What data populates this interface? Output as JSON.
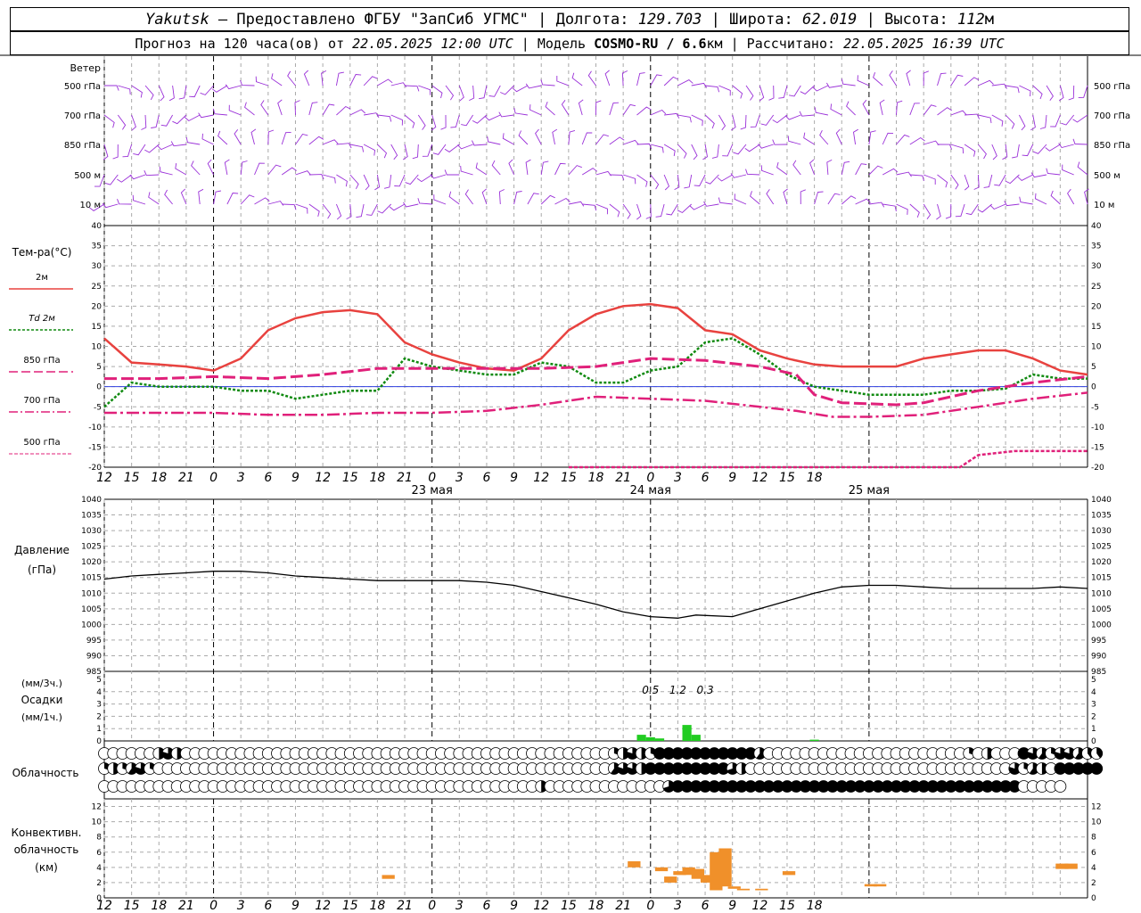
{
  "header": {
    "line1": {
      "station": "Yakutsk",
      "provided": " — Предоставлено ФГБУ \"ЗапСиб УГМС\" | Долгота: ",
      "lon": "129.703",
      "lat_label": " | Широта: ",
      "lat": "62.019",
      "alt_label": " | Высота: ",
      "alt": "112",
      "alt_unit": "м"
    },
    "line2": {
      "forecast": "Прогноз на 120 часа(ов) от ",
      "init": "22.05.2025 12:00 UTC",
      "model_label": "  | Модель ",
      "model": "COSMO-RU / 6.6",
      "model_unit": "км",
      "calc_label": " | Рассчитано: ",
      "calc": "22.05.2025 16:39 UTC"
    }
  },
  "labels": {
    "wind": "Ветер",
    "wind_levels": [
      "500 гПа",
      "700 гПа",
      "850 гПа",
      "500 м",
      "10  м"
    ],
    "temp": "Тем-ра(°C)",
    "temp_legend": [
      "2м",
      "Td  2м",
      "850 гПа",
      "700 гПа",
      "500 гПа"
    ],
    "pressure": [
      "Давление",
      "(гПа)"
    ],
    "precip": [
      "(мм/3ч.)",
      "Осадки",
      "(мм/1ч.)"
    ],
    "cloud": "Облачность",
    "conv": [
      "Конвективн.",
      "облачность",
      "(км)"
    ]
  },
  "colors": {
    "t2m": "#e8423f",
    "td2m": "#108a10",
    "t850": "#e0207a",
    "t700": "#e0207a",
    "t500": "#e0207a",
    "wind": "#9a30d8",
    "precip": "#22cc22",
    "conv": "#f0902a",
    "zero_line": "#3040e0"
  },
  "chart_data": {
    "type": "line",
    "x_axis": {
      "ticks": [
        "12",
        "15",
        "18",
        "21",
        "0",
        "3",
        "6",
        "9",
        "12",
        "15",
        "18",
        "21",
        "0",
        "3",
        "6",
        "9",
        "12",
        "15",
        "18",
        "21",
        "0",
        "3",
        "6",
        "9",
        "12",
        "15",
        "18"
      ],
      "dates": [
        "23 мая",
        "24 мая",
        "25 мая"
      ]
    },
    "temperature": {
      "ylim": [
        -20,
        40
      ],
      "yticks": [
        "40",
        "35",
        "30",
        "25",
        "20",
        "15",
        "10",
        "5",
        "0",
        "-5",
        "-10",
        "-15",
        "-20"
      ],
      "series": [
        {
          "name": "2м",
          "style": "solid",
          "values": [
            [
              0,
              12
            ],
            [
              3,
              6
            ],
            [
              6,
              5.5
            ],
            [
              9,
              5
            ],
            [
              12,
              4
            ],
            [
              15,
              7
            ],
            [
              18,
              14
            ],
            [
              21,
              17
            ],
            [
              24,
              18.5
            ],
            [
              27,
              19
            ],
            [
              30,
              18
            ],
            [
              33,
              11
            ],
            [
              36,
              8
            ],
            [
              39,
              6
            ],
            [
              42,
              4.5
            ],
            [
              45,
              4
            ],
            [
              48,
              7
            ],
            [
              51,
              14
            ],
            [
              54,
              18
            ],
            [
              57,
              20
            ],
            [
              60,
              20.5
            ],
            [
              63,
              19.5
            ],
            [
              66,
              14
            ],
            [
              69,
              13
            ],
            [
              72,
              9
            ],
            [
              75,
              7
            ],
            [
              78,
              5.5
            ],
            [
              81,
              5
            ],
            [
              84,
              5
            ],
            [
              87,
              5
            ],
            [
              90,
              7
            ],
            [
              93,
              8
            ],
            [
              96,
              9
            ],
            [
              99,
              9
            ],
            [
              102,
              7
            ],
            [
              105,
              4
            ],
            [
              108,
              3
            ]
          ]
        },
        {
          "name": "Td 2м",
          "style": "dotted",
          "values": [
            [
              0,
              -5
            ],
            [
              3,
              1
            ],
            [
              6,
              0
            ],
            [
              9,
              0
            ],
            [
              12,
              0
            ],
            [
              15,
              -1
            ],
            [
              18,
              -1
            ],
            [
              21,
              -3
            ],
            [
              24,
              -2
            ],
            [
              27,
              -1
            ],
            [
              30,
              -1
            ],
            [
              33,
              7
            ],
            [
              36,
              5
            ],
            [
              39,
              4
            ],
            [
              42,
              3
            ],
            [
              45,
              3
            ],
            [
              48,
              6
            ],
            [
              51,
              5
            ],
            [
              54,
              1
            ],
            [
              57,
              1
            ],
            [
              60,
              4
            ],
            [
              63,
              5
            ],
            [
              66,
              11
            ],
            [
              69,
              12
            ],
            [
              72,
              8
            ],
            [
              75,
              3
            ],
            [
              78,
              0
            ],
            [
              81,
              -1
            ],
            [
              84,
              -2
            ],
            [
              87,
              -2
            ],
            [
              90,
              -2
            ],
            [
              93,
              -1
            ],
            [
              96,
              -1
            ],
            [
              99,
              -0.5
            ],
            [
              102,
              3
            ],
            [
              105,
              2
            ],
            [
              108,
              2
            ]
          ]
        },
        {
          "name": "850 гПа",
          "style": "dash",
          "values": [
            [
              0,
              2
            ],
            [
              6,
              2
            ],
            [
              12,
              2.5
            ],
            [
              18,
              2
            ],
            [
              24,
              3
            ],
            [
              30,
              4.5
            ],
            [
              36,
              4.5
            ],
            [
              42,
              4.5
            ],
            [
              48,
              4.5
            ],
            [
              54,
              5
            ],
            [
              60,
              7
            ],
            [
              66,
              6.5
            ],
            [
              72,
              5
            ],
            [
              76,
              3
            ],
            [
              78,
              -2
            ],
            [
              81,
              -4
            ],
            [
              87,
              -4.5
            ],
            [
              90,
              -4
            ],
            [
              96,
              -1
            ],
            [
              102,
              1
            ],
            [
              108,
              2.5
            ]
          ]
        },
        {
          "name": "700 гПа",
          "style": "dashdot",
          "values": [
            [
              0,
              -6.5
            ],
            [
              6,
              -6.5
            ],
            [
              12,
              -6.5
            ],
            [
              18,
              -7
            ],
            [
              24,
              -7
            ],
            [
              30,
              -6.5
            ],
            [
              36,
              -6.5
            ],
            [
              42,
              -6
            ],
            [
              48,
              -4.5
            ],
            [
              54,
              -2.5
            ],
            [
              60,
              -3
            ],
            [
              66,
              -3.5
            ],
            [
              72,
              -5
            ],
            [
              76,
              -6
            ],
            [
              80,
              -7.5
            ],
            [
              84,
              -7.5
            ],
            [
              90,
              -7
            ],
            [
              96,
              -5
            ],
            [
              102,
              -3
            ],
            [
              108,
              -1.5
            ]
          ]
        },
        {
          "name": "500 гПа",
          "style": "dashsmall",
          "values": [
            [
              51,
              -20
            ],
            [
              57,
              -20
            ],
            [
              63,
              -20
            ],
            [
              94,
              -20
            ],
            [
              96,
              -17
            ],
            [
              100,
              -16
            ],
            [
              104,
              -16
            ],
            [
              108,
              -16
            ]
          ]
        }
      ]
    },
    "pressure": {
      "ylim": [
        985,
        1040
      ],
      "yticks": [
        "1040",
        "1035",
        "1030",
        "1025",
        "1020",
        "1015",
        "1010",
        "1005",
        "1000",
        "995",
        "990",
        "985"
      ],
      "values": [
        [
          0,
          1014.5
        ],
        [
          3,
          1015.5
        ],
        [
          6,
          1016
        ],
        [
          9,
          1016.5
        ],
        [
          12,
          1017
        ],
        [
          15,
          1017
        ],
        [
          18,
          1016.5
        ],
        [
          21,
          1015.5
        ],
        [
          24,
          1015
        ],
        [
          27,
          1014.5
        ],
        [
          30,
          1014
        ],
        [
          33,
          1014
        ],
        [
          36,
          1014
        ],
        [
          39,
          1014
        ],
        [
          42,
          1013.5
        ],
        [
          45,
          1012.5
        ],
        [
          48,
          1010.5
        ],
        [
          51,
          1008.5
        ],
        [
          54,
          1006.5
        ],
        [
          57,
          1004
        ],
        [
          60,
          1002.5
        ],
        [
          63,
          1002
        ],
        [
          65,
          1003
        ],
        [
          69,
          1002.5
        ],
        [
          72,
          1005
        ],
        [
          75,
          1007.5
        ],
        [
          78,
          1010
        ],
        [
          81,
          1012
        ],
        [
          84,
          1012.5
        ],
        [
          87,
          1012.5
        ],
        [
          90,
          1012
        ],
        [
          93,
          1011.5
        ],
        [
          96,
          1011.5
        ],
        [
          99,
          1011.5
        ],
        [
          102,
          1011.5
        ],
        [
          105,
          1012
        ],
        [
          108,
          1011.5
        ]
      ]
    },
    "precipitation": {
      "ylim": [
        0,
        5
      ],
      "yticks": [
        "5",
        "4",
        "3",
        "2",
        "1",
        "0"
      ],
      "totals_3h": [
        {
          "x": 60,
          "label": "0.5"
        },
        {
          "x": 63,
          "label": "1.2"
        },
        {
          "x": 66,
          "label": "0.3"
        }
      ],
      "bars": [
        [
          59,
          0.5
        ],
        [
          60,
          0.3
        ],
        [
          61,
          0.2
        ],
        [
          64,
          1.3
        ],
        [
          65,
          0.5
        ],
        [
          78,
          0.1
        ]
      ]
    },
    "cloudiness": {
      "note": "fraction 0..1 per row, per 1h step",
      "rows": [
        [
          0,
          0,
          0,
          0,
          0,
          0,
          0.5,
          0.8,
          0.5,
          0,
          0,
          0,
          0,
          0,
          0,
          0,
          0,
          0,
          0,
          0,
          0,
          0,
          0,
          0,
          0,
          0,
          0,
          0,
          0,
          0,
          0,
          0,
          0,
          0,
          0,
          0,
          0,
          0,
          0,
          0,
          0,
          0,
          0,
          0,
          0,
          0,
          0,
          0,
          0,
          0,
          0,
          0,
          0,
          0,
          0,
          0,
          0.3,
          0.5,
          0.8,
          0.5,
          0.3,
          1,
          1,
          1,
          1,
          1,
          1,
          1,
          1,
          1,
          1,
          1,
          0.6,
          0,
          0,
          0,
          0,
          0,
          0,
          0,
          0,
          0,
          0,
          0,
          0,
          0,
          0,
          0,
          0,
          0,
          0,
          0,
          0,
          0,
          0,
          0.3,
          0,
          0.5,
          0,
          0,
          0,
          1,
          0.8,
          0.6,
          0.3,
          0.8,
          0.8,
          0.6,
          0.4,
          0.4
        ],
        [
          0.3,
          0.5,
          0.3,
          0.6,
          0.8,
          0.3,
          0,
          0,
          0,
          0,
          0,
          0,
          0,
          0,
          0,
          0,
          0,
          0,
          0,
          0,
          0,
          0,
          0,
          0,
          0,
          0,
          0,
          0,
          0,
          0,
          0,
          0,
          0,
          0,
          0,
          0,
          0,
          0,
          0,
          0,
          0,
          0,
          0,
          0,
          0,
          0,
          0,
          0,
          0,
          0,
          0,
          0,
          0,
          0,
          0,
          0,
          0.6,
          0.8,
          0.8,
          0.5,
          1,
          1,
          1,
          1,
          1,
          1,
          1,
          1,
          1,
          0.7,
          0.5,
          0,
          0,
          0,
          0,
          0,
          0,
          0,
          0,
          0,
          0,
          0,
          0,
          0,
          0,
          0,
          0,
          0,
          0,
          0,
          0,
          0,
          0,
          0,
          0,
          0,
          0,
          0,
          0,
          0,
          0.8,
          0.3,
          0.6,
          0.5,
          0,
          1,
          1,
          1,
          1,
          1
        ],
        [
          0,
          0,
          0,
          0,
          0,
          0,
          0,
          0,
          0,
          0,
          0,
          0,
          0,
          0,
          0,
          0,
          0,
          0,
          0,
          0,
          0,
          0,
          0,
          0,
          0,
          0,
          0,
          0,
          0,
          0,
          0,
          0,
          0,
          0,
          0,
          0,
          0,
          0,
          0,
          0,
          0,
          0,
          0,
          0,
          0,
          0,
          0,
          0,
          0.5,
          0,
          0,
          0,
          0,
          0,
          0,
          0,
          0,
          0,
          0,
          0,
          0,
          0,
          0.7,
          1,
          1,
          1,
          1,
          1,
          1,
          1,
          1,
          1,
          1,
          1,
          1,
          1,
          1,
          1,
          1,
          1,
          1,
          1,
          1,
          1,
          1,
          1,
          1,
          1,
          1,
          1,
          1,
          1,
          1,
          1,
          1,
          1,
          1,
          1,
          1,
          1,
          1,
          0,
          0,
          0,
          0,
          0
        ]
      ]
    },
    "convective_clouds": {
      "ylim": [
        0,
        13
      ],
      "yticks": [
        "12",
        "10",
        "8",
        "6",
        "4",
        "2",
        "0"
      ],
      "bars": [
        [
          31,
          2.5,
          3
        ],
        [
          58,
          4,
          4.8
        ],
        [
          61,
          3.5,
          4
        ],
        [
          62,
          2,
          2.8
        ],
        [
          63,
          3,
          3.5
        ],
        [
          64,
          3,
          4
        ],
        [
          65,
          2.5,
          3.8
        ],
        [
          66,
          2,
          3
        ],
        [
          67,
          1,
          6
        ],
        [
          68,
          1.5,
          6.5
        ],
        [
          69,
          1.2,
          1.5
        ],
        [
          70,
          1,
          1.2
        ],
        [
          72,
          1,
          1.2
        ],
        [
          75,
          3,
          3.5
        ],
        [
          84,
          1.5,
          1.8
        ],
        [
          85,
          1.5,
          1.8
        ],
        [
          105,
          3.8,
          4.5
        ],
        [
          106,
          3.8,
          4.5
        ]
      ]
    }
  }
}
